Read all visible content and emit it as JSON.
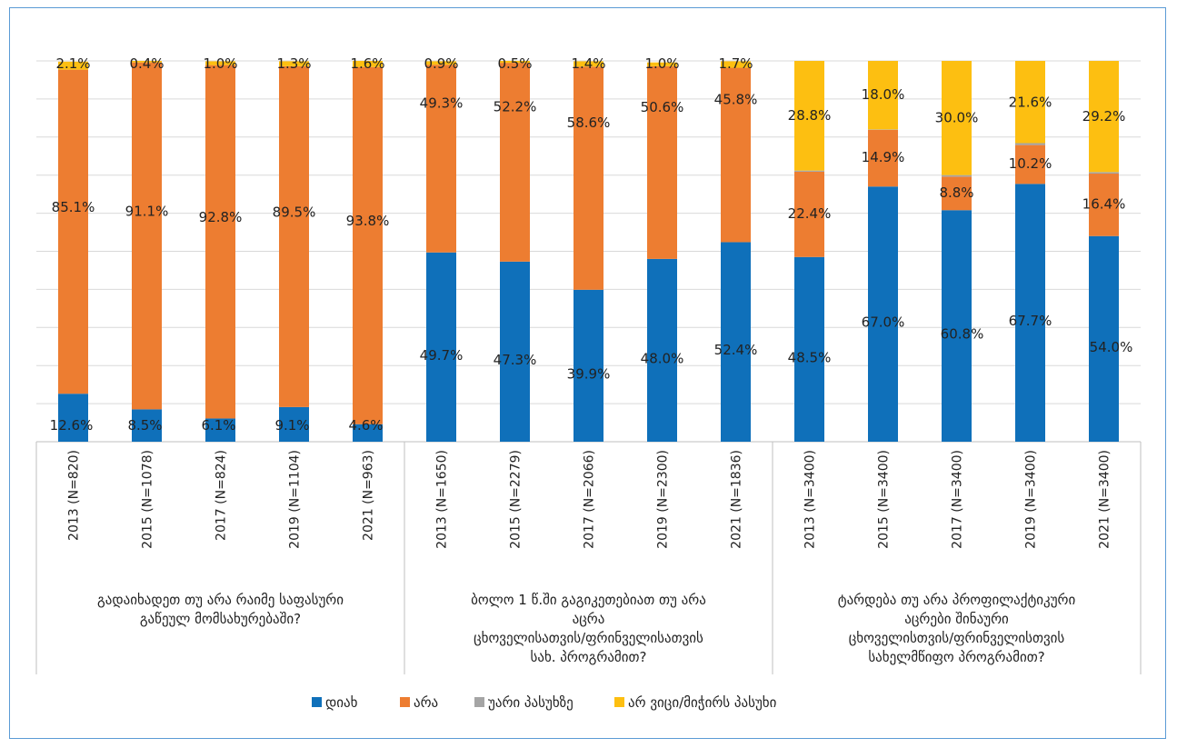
{
  "chart_data": {
    "type": "bar",
    "stacked": true,
    "normalized": true,
    "ylim": [
      0,
      100
    ],
    "grid": true,
    "legend_position": "bottom",
    "colors": [
      "#0f70ba",
      "#ed7d31",
      "#a5a5a5",
      "#fdbf11"
    ],
    "legend": [
      "დიახ",
      "არა",
      "უარი პასუხზე",
      "არ ვიცი/მიჭირს პასუხი"
    ],
    "groups": [
      {
        "label": "გადაიხადეთ თუ არა რაიმე საფასური გაწეულ მომსახურებაში?",
        "label_lines": [
          "გადაიხადეთ თუ არა რაიმე საფასური",
          "გაწეულ მომსახურებაში?"
        ],
        "bars": [
          {
            "category": "2013 (N=820)",
            "values": [
              12.6,
              85.1,
              0.0,
              2.1
            ]
          },
          {
            "category": "2015 (N=1078)",
            "values": [
              8.5,
              91.1,
              0.0,
              0.4
            ]
          },
          {
            "category": "2017 (N=824)",
            "values": [
              6.1,
              92.8,
              0.0,
              1.0
            ]
          },
          {
            "category": "2019 (N=1104)",
            "values": [
              9.1,
              89.5,
              0.0,
              1.3
            ]
          },
          {
            "category": "2021 (N=963)",
            "values": [
              4.6,
              93.8,
              0.0,
              1.6
            ]
          }
        ]
      },
      {
        "label": "ბოლო 1 წ.ში გაგიკეთებიათ თუ არა აცრა ცხოველისათვის/ფრინველისათვის სახ. პროგრამით?",
        "label_lines": [
          "ბოლო 1 წ.ში გაგიკეთებიათ თუ არა",
          "აცრა",
          "ცხოველისათვის/ფრინველისათვის",
          "სახ. პროგრამით?"
        ],
        "bars": [
          {
            "category": "2013 (N=1650)",
            "values": [
              49.7,
              49.3,
              0.0,
              0.9
            ]
          },
          {
            "category": "2015 (N=2279)",
            "values": [
              47.3,
              52.2,
              0.0,
              0.5
            ]
          },
          {
            "category": "2017 (N=2066)",
            "values": [
              39.9,
              58.6,
              0.0,
              1.4
            ]
          },
          {
            "category": "2019 (N=2300)",
            "values": [
              48.0,
              50.6,
              0.0,
              1.0
            ]
          },
          {
            "category": "2021 (N=1836)",
            "values": [
              52.4,
              45.8,
              0.0,
              1.7
            ]
          }
        ]
      },
      {
        "label": "ტარდება თუ არა პროფილაქტიკური აცრები შინაური ცხოველისთვის/ფრინველისთვის სახელმწიფო პროგრამით?",
        "label_lines": [
          "ტარდება თუ არა პროფილაქტიკური",
          "აცრები შინაური",
          "ცხოველისთვის/ფრინველისთვის",
          "სახელმწიფო პროგრამით?"
        ],
        "bars": [
          {
            "category": "2013 (N=3400)",
            "values": [
              48.5,
              22.4,
              0.3,
              28.8
            ]
          },
          {
            "category": "2015 (N=3400)",
            "values": [
              67.0,
              14.9,
              0.1,
              18.0
            ]
          },
          {
            "category": "2017 (N=3400)",
            "values": [
              60.8,
              8.8,
              0.4,
              30.0
            ]
          },
          {
            "category": "2019 (N=3400)",
            "values": [
              67.7,
              10.2,
              0.5,
              21.6
            ]
          },
          {
            "category": "2021 (N=3400)",
            "values": [
              54.0,
              16.4,
              0.4,
              29.2
            ]
          }
        ]
      }
    ]
  }
}
